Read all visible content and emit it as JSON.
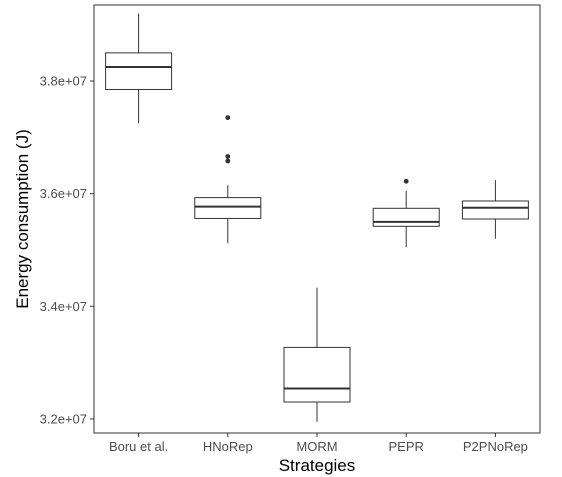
{
  "chart_data": {
    "type": "boxplot",
    "xlabel": "Strategies",
    "ylabel": "Energy consumption (J)",
    "ylim": [
      31750000,
      39350000
    ],
    "yticks": [
      32000000,
      34000000,
      36000000,
      38000000
    ],
    "ytick_labels": [
      "3.2e+07",
      "3.4e+07",
      "3.6e+07",
      "3.8e+07"
    ],
    "grid": false,
    "categories": [
      "Boru et al.",
      "HNoRep",
      "MORM",
      "PEPR",
      "P2PNoRep"
    ],
    "boxes": [
      {
        "category": "Boru et al.",
        "whisker_low": 37250000,
        "q1": 37850000,
        "median": 38250000,
        "q3": 38500000,
        "whisker_high": 39200000,
        "outliers": []
      },
      {
        "category": "HNoRep",
        "whisker_low": 35120000,
        "q1": 35560000,
        "median": 35770000,
        "q3": 35930000,
        "whisker_high": 36150000,
        "outliers": [
          37350000,
          36660000,
          36580000
        ]
      },
      {
        "category": "MORM",
        "whisker_low": 31950000,
        "q1": 32300000,
        "median": 32540000,
        "q3": 33270000,
        "whisker_high": 34330000,
        "outliers": []
      },
      {
        "category": "PEPR",
        "whisker_low": 35050000,
        "q1": 35420000,
        "median": 35500000,
        "q3": 35740000,
        "whisker_high": 36050000,
        "outliers": [
          36220000
        ]
      },
      {
        "category": "P2PNoRep",
        "whisker_low": 35200000,
        "q1": 35550000,
        "median": 35750000,
        "q3": 35870000,
        "whisker_high": 36240000,
        "outliers": []
      }
    ]
  }
}
